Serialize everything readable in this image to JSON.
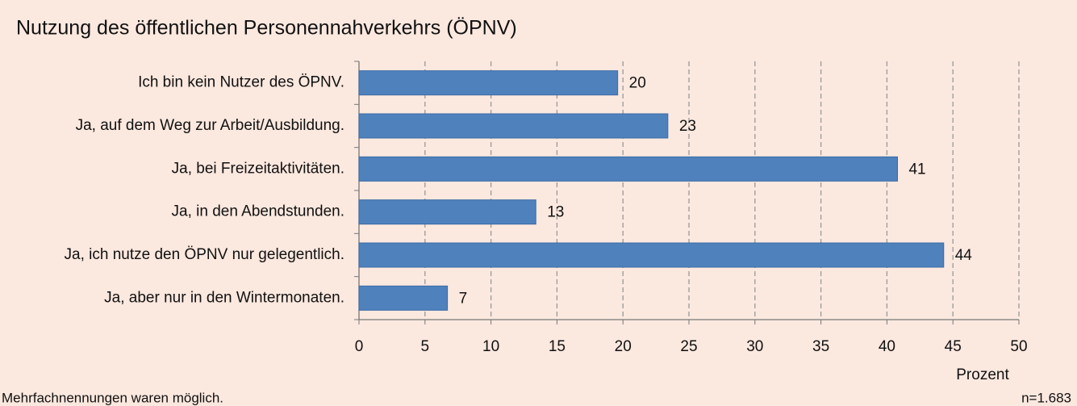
{
  "chart_data": {
    "type": "barh",
    "title": "Nutzung des öffentlichen Personennahverkehrs (ÖPNV)",
    "categories": [
      "Ich bin kein Nutzer des ÖPNV.",
      "Ja, auf dem Weg zur Arbeit/Ausbildung.",
      "Ja, bei Freizeitaktivitäten.",
      "Ja, in den Abendstunden.",
      "Ja, ich nutze den ÖPNV nur gelegentlich.",
      "Ja, aber nur in den Wintermonaten."
    ],
    "values": [
      19.6,
      23.4,
      40.8,
      13.4,
      44.3,
      6.7
    ],
    "value_labels": [
      "20",
      "23",
      "41",
      "13",
      "44",
      "7"
    ],
    "color": "#4f81bd",
    "xlim": [
      0,
      50
    ],
    "xticks": [
      0,
      5,
      10,
      15,
      20,
      25,
      30,
      35,
      40,
      45,
      50
    ],
    "xlabel": "Prozent",
    "grid": true,
    "note": "Mehrfachnennungen waren möglich.",
    "sample": "n=1.683"
  }
}
